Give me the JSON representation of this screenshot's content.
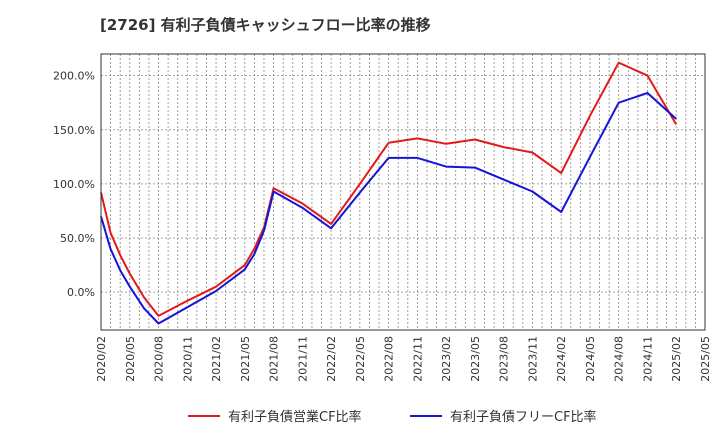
{
  "chart_data": {
    "type": "line",
    "title": "[2726]  有利子負債キャッシュフロー比率の推移",
    "xlabel": "",
    "ylabel": "",
    "ylim": [
      -35,
      220
    ],
    "y_ticks": [
      0,
      50,
      100,
      150,
      200
    ],
    "y_tick_labels": [
      "0.0%",
      "50.0%",
      "100.0%",
      "150.0%",
      "200.0%"
    ],
    "x_tick_labels": [
      "2020/02",
      "2020/05",
      "2020/08",
      "2020/11",
      "2021/02",
      "2021/05",
      "2021/08",
      "2021/11",
      "2022/02",
      "2022/05",
      "2022/08",
      "2022/11",
      "2023/02",
      "2023/05",
      "2023/08",
      "2023/11",
      "2024/02",
      "2024/05",
      "2024/08",
      "2024/11",
      "2025/02",
      "2025/05"
    ],
    "grid": true,
    "legend_position": "bottom",
    "series": [
      {
        "name": "有利子負債営業CF比率",
        "color": "#e31a1c",
        "points": [
          [
            0,
            92
          ],
          [
            0.33,
            55
          ],
          [
            0.67,
            34
          ],
          [
            1,
            17
          ],
          [
            1.5,
            -5
          ],
          [
            2,
            -22
          ],
          [
            3,
            -8
          ],
          [
            4,
            5
          ],
          [
            5,
            25
          ],
          [
            5.33,
            40
          ],
          [
            5.67,
            60
          ],
          [
            6,
            96
          ],
          [
            7,
            82
          ],
          [
            8,
            63
          ],
          [
            9,
            100
          ],
          [
            10,
            138
          ],
          [
            11,
            142
          ],
          [
            12,
            137
          ],
          [
            13,
            141
          ],
          [
            14,
            134
          ],
          [
            15,
            129
          ],
          [
            16,
            110
          ],
          [
            17,
            163
          ],
          [
            18,
            212
          ],
          [
            19,
            200
          ],
          [
            20,
            155
          ]
        ]
      },
      {
        "name": "有利子負債フリーCF比率",
        "color": "#1515d6",
        "points": [
          [
            0,
            70
          ],
          [
            0.33,
            40
          ],
          [
            0.67,
            20
          ],
          [
            1,
            5
          ],
          [
            1.5,
            -15
          ],
          [
            2,
            -29
          ],
          [
            3,
            -14
          ],
          [
            4,
            1
          ],
          [
            5,
            21
          ],
          [
            5.33,
            35
          ],
          [
            5.67,
            57
          ],
          [
            6,
            93
          ],
          [
            7,
            78
          ],
          [
            8,
            59
          ],
          [
            9,
            92
          ],
          [
            10,
            124
          ],
          [
            11,
            124
          ],
          [
            12,
            116
          ],
          [
            13,
            115
          ],
          [
            14,
            104
          ],
          [
            15,
            93
          ],
          [
            16,
            74
          ],
          [
            17,
            125
          ],
          [
            18,
            175
          ],
          [
            19,
            184
          ],
          [
            20,
            160
          ]
        ]
      }
    ]
  }
}
